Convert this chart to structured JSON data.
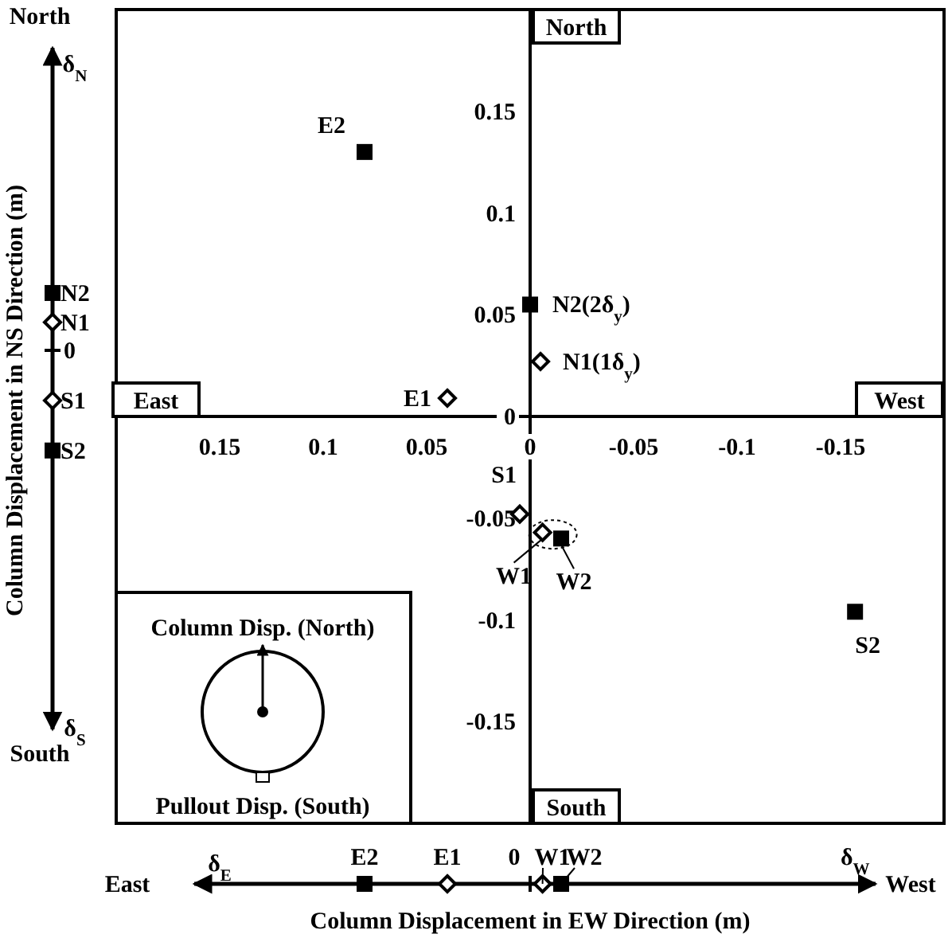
{
  "chart_data": {
    "type": "scatter",
    "xlabel": "Column Displacement in EW Direction (m)",
    "ylabel": "Column Displacement in NS Direction (m)",
    "xlim": [
      0.2,
      -0.2
    ],
    "ylim": [
      -0.2,
      0.2
    ],
    "xticks": [
      0.15,
      0.1,
      0.05,
      0,
      -0.05,
      -0.1,
      -0.15
    ],
    "yticks": [
      -0.15,
      -0.1,
      -0.05,
      0,
      0.05,
      0.1,
      0.15
    ],
    "grid": false,
    "series": [
      {
        "type": "scatter",
        "color": "#000000",
        "marker": "square",
        "x": [
          0.08,
          0.0,
          -0.015,
          -0.157
        ],
        "values": [
          0.13,
          0.055,
          -0.06,
          -0.096
        ]
      },
      {
        "color": "#000000",
        "marker": "diamond",
        "x": [
          -0.005,
          0.04,
          0.005,
          -0.006
        ],
        "values": [
          0.027,
          0.009,
          -0.048,
          -0.057
        ]
      }
    ],
    "annotations": [
      {
        "text": "E2",
        "x": 0.08,
        "y": 0.13
      },
      {
        "text": "N2(2δ$_{y}$)",
        "x": 0.0,
        "y": 0.055
      },
      {
        "text": "W2",
        "x": -0.015,
        "y": -0.06
      },
      {
        "text": "S2",
        "x": -0.157,
        "y": -0.096
      },
      {
        "text": "N1(1δ$_{y}$)",
        "x": -0.005,
        "y": 0.027
      },
      {
        "text": "E1",
        "x": 0.04,
        "y": 0.009
      },
      {
        "text": "S1",
        "x": 0.005,
        "y": -0.048
      },
      {
        "text": "W1",
        "x": -0.006,
        "y": -0.057
      },
      "North",
      "South",
      "East",
      "West",
      "North",
      "South",
      "δ$_{N}$",
      "δ$_{S}$",
      "East",
      "West",
      "δ$_{E}$",
      "δ$_{W}$",
      "N2",
      "N1",
      "0",
      "S1",
      "S2",
      "E2",
      "E1",
      "0",
      "W1",
      "W2",
      "Column Disp. (North)",
      "Pullout Disp. (South)"
    ]
  }
}
